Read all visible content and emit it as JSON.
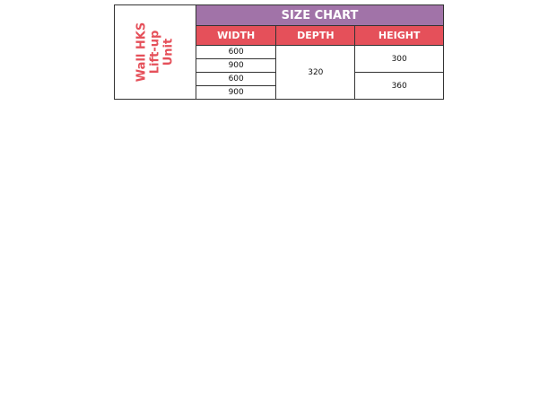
{
  "product_label": [
    "Wall HKS",
    "Lift-up",
    "Unit"
  ],
  "title": "SIZE CHART",
  "headers": [
    "WIDTH",
    "DEPTH",
    "HEIGHT"
  ],
  "widths": [
    "600",
    "900",
    "600",
    "900"
  ],
  "depth": "320",
  "heights": [
    "300",
    "360"
  ],
  "colors": {
    "title_bg": "#a173a8",
    "header_bg": "#e5505a",
    "label_text": "#e5505a"
  }
}
